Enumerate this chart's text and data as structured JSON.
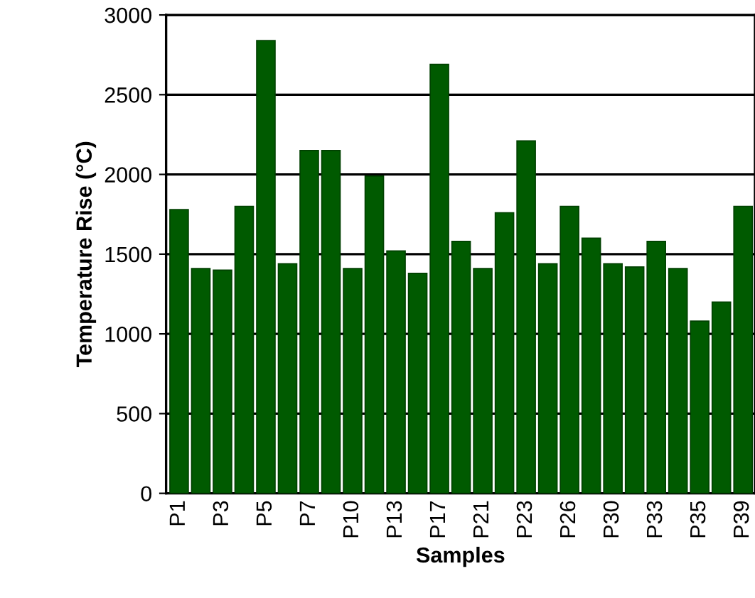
{
  "chart_data": {
    "type": "bar",
    "xlabel": "Samples",
    "ylabel": "Temperature Rise (°C)",
    "categories": [
      "P1",
      null,
      "P3",
      null,
      "P5",
      null,
      "P7",
      null,
      "P10",
      null,
      "P13",
      null,
      "P17",
      null,
      "P21",
      null,
      "P23",
      null,
      "P26",
      null,
      "P30",
      null,
      "P33",
      null,
      "P35",
      null,
      "P39"
    ],
    "values": [
      1780,
      1410,
      1400,
      1800,
      2840,
      1440,
      2150,
      2150,
      1410,
      1990,
      1520,
      1380,
      2690,
      1580,
      1410,
      1760,
      2210,
      1440,
      1800,
      1600,
      1440,
      1420,
      1580,
      1410,
      1080,
      1200,
      1800
    ],
    "color": "#005a00",
    "ylim": [
      0,
      3000
    ],
    "yticks": [
      0,
      500,
      1000,
      1500,
      2000,
      2500,
      3000
    ],
    "grid": "y"
  }
}
